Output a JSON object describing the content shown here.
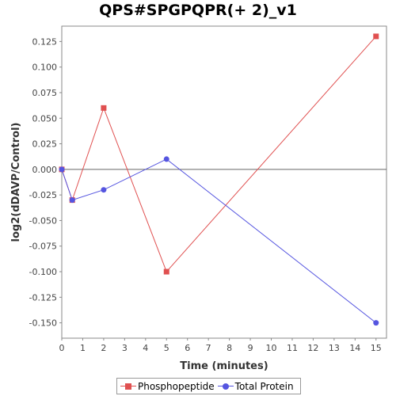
{
  "chart_data": {
    "type": "line",
    "title": "QPS#SPGPQPR(+ 2)_v1",
    "xlabel": "Time (minutes)",
    "ylabel": "log2(dDAVP/Control)",
    "xlim": [
      0,
      15.5
    ],
    "ylim": [
      -0.165,
      0.14
    ],
    "xticks": [
      0,
      1,
      2,
      3,
      4,
      5,
      6,
      7,
      8,
      9,
      10,
      11,
      12,
      13,
      14,
      15
    ],
    "yticks": [
      -0.15,
      -0.125,
      -0.1,
      -0.075,
      -0.05,
      -0.025,
      0.0,
      0.025,
      0.05,
      0.075,
      0.1,
      0.125
    ],
    "ytick_labels": [
      "-0.150",
      "-0.125",
      "-0.100",
      "-0.075",
      "-0.050",
      "-0.025",
      "0.000",
      "0.025",
      "0.050",
      "0.075",
      "0.100",
      "0.125"
    ],
    "zero_line": true,
    "grid": false,
    "legend_position": "bottom",
    "series": [
      {
        "name": "Phosphopeptide",
        "color": "#e05050",
        "marker": "square",
        "x": [
          0,
          0.5,
          2,
          5,
          15
        ],
        "y": [
          0.0,
          -0.03,
          0.06,
          -0.1,
          0.13
        ]
      },
      {
        "name": "Total Protein",
        "color": "#5555e0",
        "marker": "circle",
        "x": [
          0,
          0.5,
          2,
          5,
          15
        ],
        "y": [
          0.0,
          -0.03,
          -0.02,
          0.01,
          -0.15
        ]
      }
    ]
  }
}
